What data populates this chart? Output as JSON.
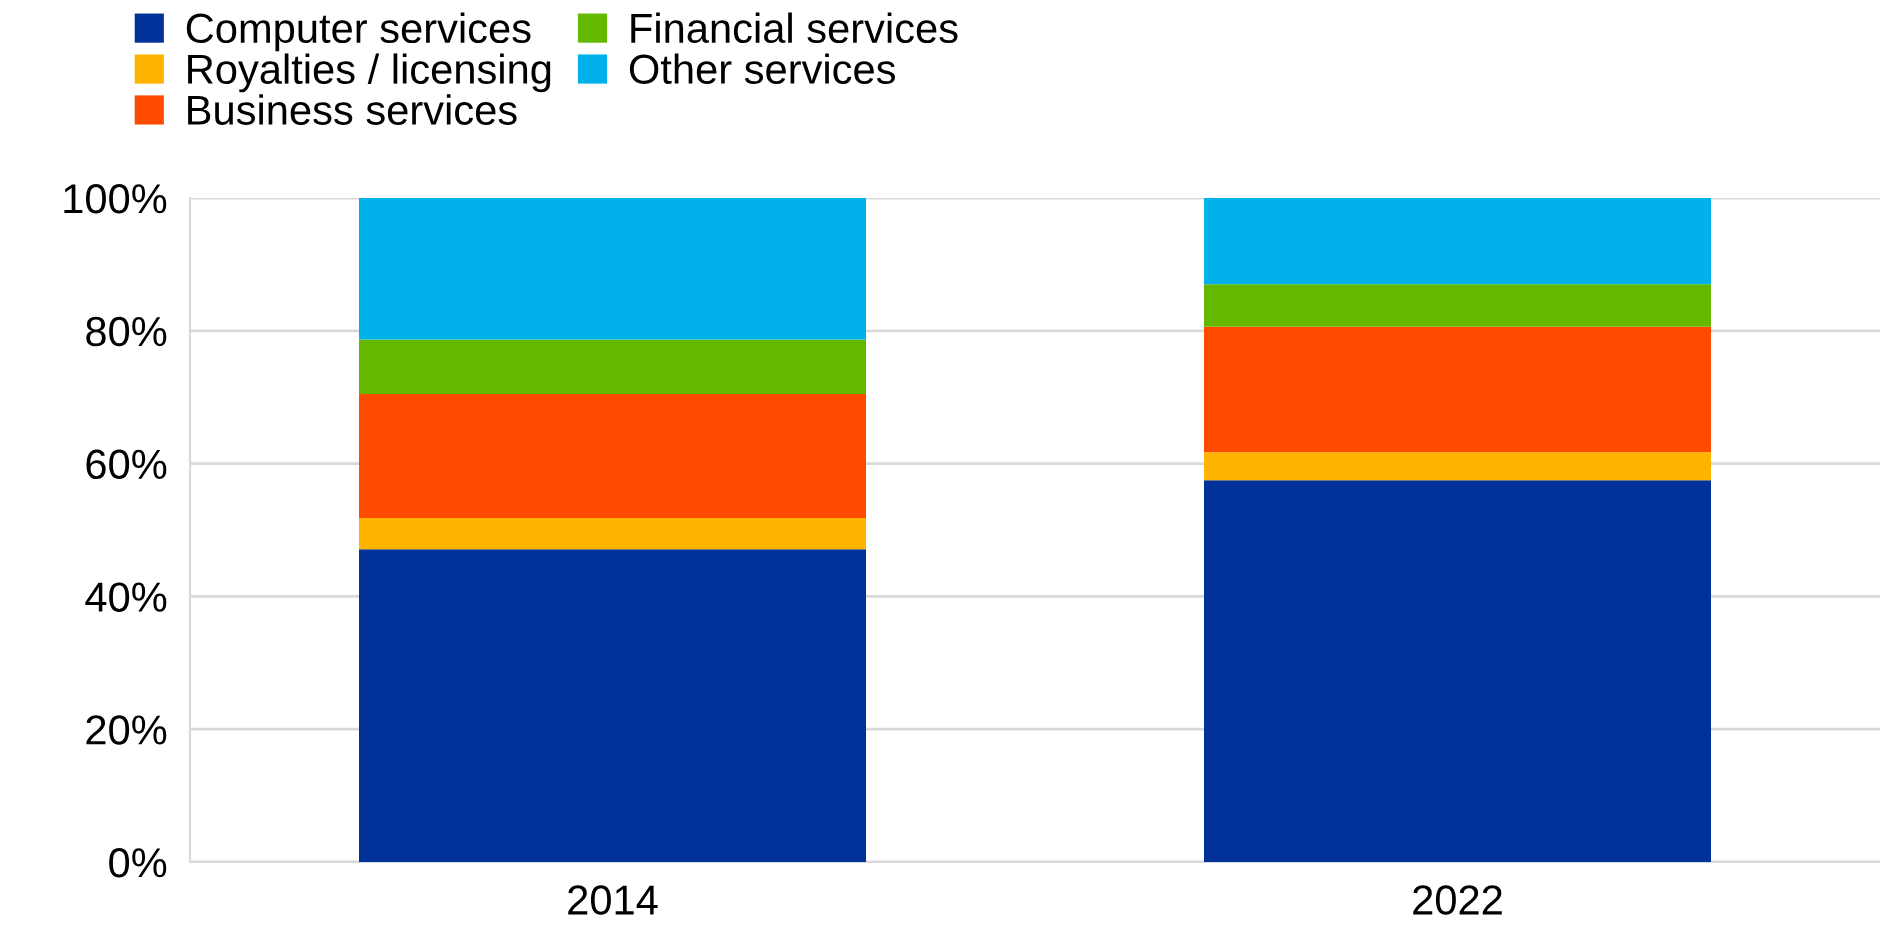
{
  "chart_data": {
    "type": "bar",
    "stacked": true,
    "categories": [
      "2014",
      "2022"
    ],
    "series": [
      {
        "name": "Computer services",
        "color": "#003299",
        "values": [
          47.1,
          57.5
        ]
      },
      {
        "name": "Royalties / licensing",
        "color": "#ffb400",
        "values": [
          4.7,
          4.2
        ]
      },
      {
        "name": "Business services",
        "color": "#ff4b00",
        "values": [
          18.7,
          18.9
        ]
      },
      {
        "name": "Financial services",
        "color": "#65b800",
        "values": [
          8.2,
          6.4
        ]
      },
      {
        "name": "Other services",
        "color": "#00b1ea",
        "values": [
          21.3,
          13.0
        ]
      }
    ],
    "ylim": [
      0,
      100
    ],
    "yticks": [
      {
        "value": 0,
        "label": "0%"
      },
      {
        "value": 20,
        "label": "20%"
      },
      {
        "value": 40,
        "label": "40%"
      },
      {
        "value": 60,
        "label": "60%"
      },
      {
        "value": 80,
        "label": "80%"
      },
      {
        "value": 100,
        "label": "100%"
      }
    ],
    "grid": "y",
    "legend": "top left"
  }
}
